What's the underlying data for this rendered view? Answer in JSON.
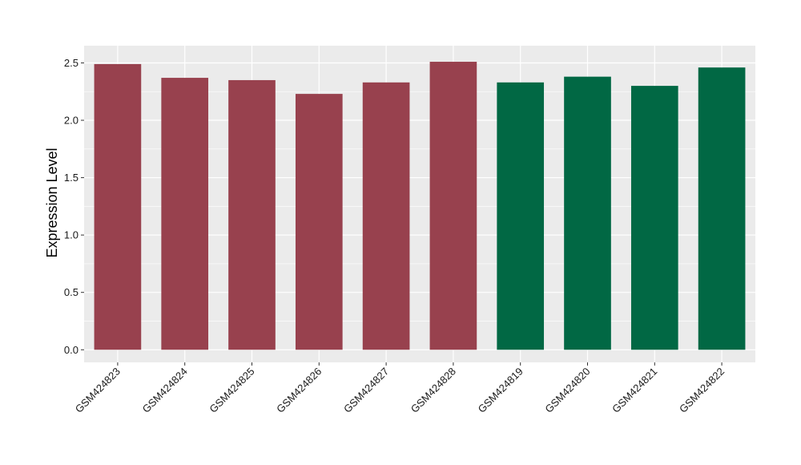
{
  "chart_data": {
    "type": "bar",
    "title": "",
    "xlabel": "",
    "ylabel": "Expression Level",
    "ylim": [
      -0.11,
      2.65
    ],
    "yticks": [
      0.0,
      0.5,
      1.0,
      1.5,
      2.0,
      2.5
    ],
    "ytick_labels": [
      "0.0",
      "0.5",
      "1.0",
      "1.5",
      "2.0",
      "2.5"
    ],
    "grid": true,
    "legend": "none",
    "categories": [
      "GSM424823",
      "GSM424824",
      "GSM424825",
      "GSM424826",
      "GSM424827",
      "GSM424828",
      "GSM424819",
      "GSM424820",
      "GSM424821",
      "GSM424822"
    ],
    "values": [
      2.49,
      2.37,
      2.35,
      2.23,
      2.33,
      2.51,
      2.33,
      2.38,
      2.3,
      2.46
    ],
    "bar_colors": [
      "#98414e",
      "#98414e",
      "#98414e",
      "#98414e",
      "#98414e",
      "#98414e",
      "#016844",
      "#016844",
      "#016844",
      "#016844"
    ],
    "panel_background": "#ebebeb",
    "grid_color": "#ffffff"
  }
}
